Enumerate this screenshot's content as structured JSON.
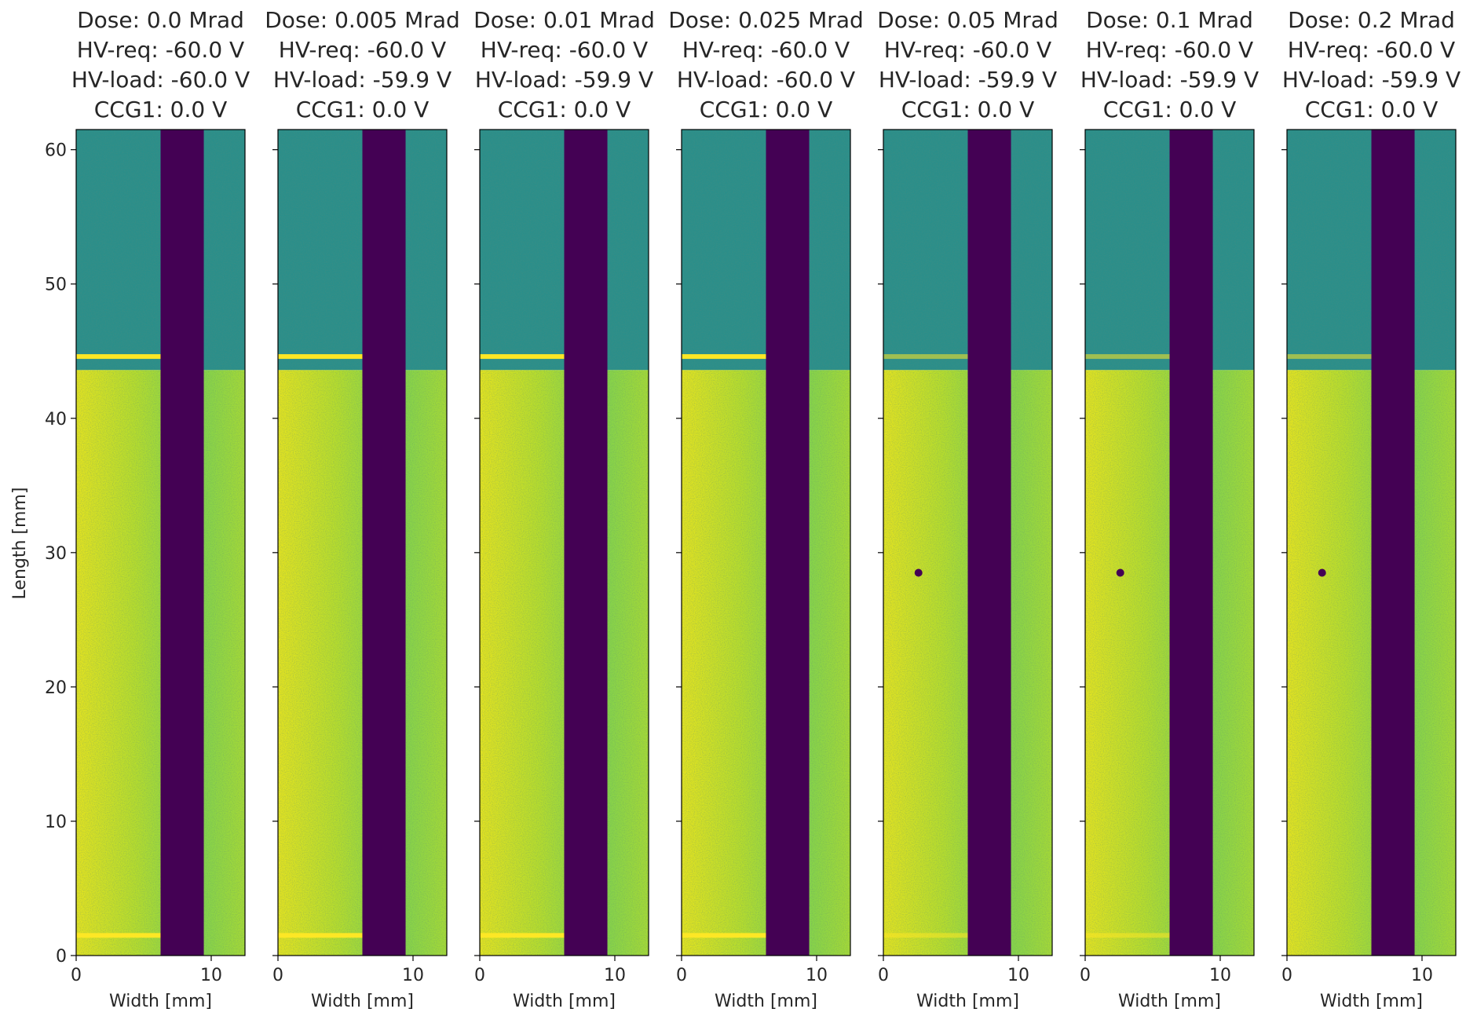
{
  "chart_data": {
    "type": "heatmap",
    "colormap": "viridis",
    "colors": {
      "band": "#440154",
      "base": "#5ec962",
      "upper": "#2a8f8a",
      "bright": "#fde725",
      "text": "#262626"
    },
    "xlabel": "Width [mm]",
    "ylabel": "Length [mm]",
    "xlim": [
      0,
      12.5
    ],
    "ylim": [
      0,
      61.5
    ],
    "xticks": [
      0,
      10
    ],
    "yticks": [
      0,
      10,
      20,
      30,
      40,
      50,
      60
    ],
    "dead_band_x": [
      6.25,
      9.45
    ],
    "upper_region_boundary_y": 43.6,
    "panels": [
      {
        "dose": "Dose: 0.0 Mrad",
        "hv_req": "HV-req: -60.0 V",
        "hv_load": "HV-load: -60.0 V",
        "ccg1": "CCG1: 0.0 V",
        "hot_lines": [
          44.6,
          1.5
        ],
        "defect": null
      },
      {
        "dose": "Dose: 0.005 Mrad",
        "hv_req": "HV-req: -60.0 V",
        "hv_load": "HV-load: -59.9 V",
        "ccg1": "CCG1: 0.0 V",
        "hot_lines": [
          44.6,
          1.5
        ],
        "defect": null
      },
      {
        "dose": "Dose: 0.01 Mrad",
        "hv_req": "HV-req: -60.0 V",
        "hv_load": "HV-load: -59.9 V",
        "ccg1": "CCG1: 0.0 V",
        "hot_lines": [
          44.6,
          1.5
        ],
        "defect": null
      },
      {
        "dose": "Dose: 0.025 Mrad",
        "hv_req": "HV-req: -60.0 V",
        "hv_load": "HV-load: -60.0 V",
        "ccg1": "CCG1: 0.0 V",
        "hot_lines": [
          44.6,
          1.5
        ],
        "defect": null
      },
      {
        "dose": "Dose: 0.05 Mrad",
        "hv_req": "HV-req: -60.0 V",
        "hv_load": "HV-load: -59.9 V",
        "ccg1": "CCG1: 0.0 V",
        "hot_lines": [
          44.6,
          1.5
        ],
        "defect": [
          2.6,
          28.5
        ]
      },
      {
        "dose": "Dose: 0.1 Mrad",
        "hv_req": "HV-req: -60.0 V",
        "hv_load": "HV-load: -59.9 V",
        "ccg1": "CCG1: 0.0 V",
        "hot_lines": [
          44.6,
          1.5
        ],
        "defect": [
          2.6,
          28.5
        ]
      },
      {
        "dose": "Dose: 0.2 Mrad",
        "hv_req": "HV-req: -60.0 V",
        "hv_load": "HV-load: -59.9 V",
        "ccg1": "CCG1: 0.0 V",
        "hot_lines": [
          44.6
        ],
        "defect": [
          2.6,
          28.5
        ]
      }
    ]
  }
}
